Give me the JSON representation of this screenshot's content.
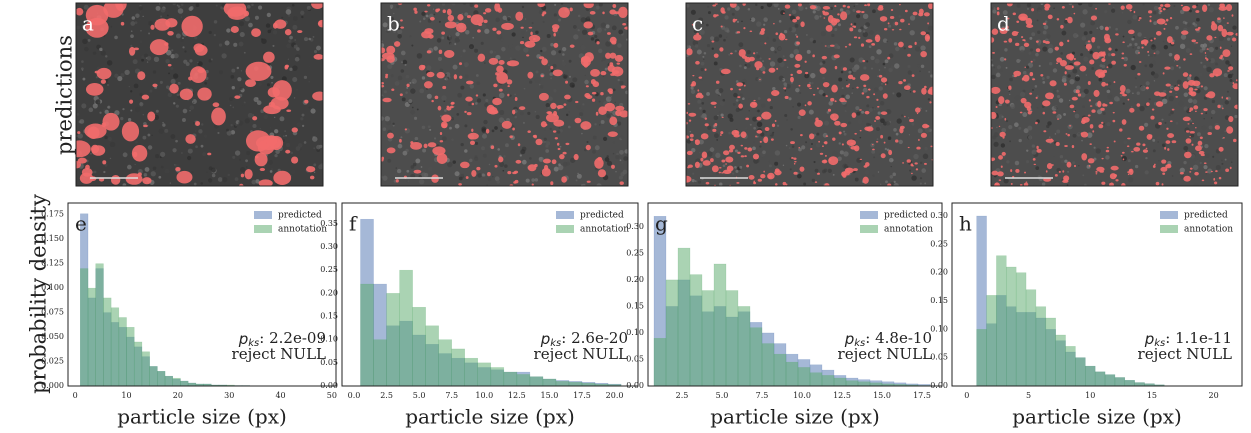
{
  "top_label": "predictions",
  "images": [
    {
      "label": "a"
    },
    {
      "label": "b"
    },
    {
      "label": "c"
    },
    {
      "label": "d"
    }
  ],
  "chart_data": [
    {
      "type": "histogram",
      "panel": "e",
      "xlabel": "particle size (px)",
      "ylabel": "probability density",
      "stat_symbol": "p",
      "stat_subscript": "ks",
      "stat_value": ": 2.2e-09",
      "decision": "reject NULL",
      "legend": "upper right",
      "xlim": [
        -1.4,
        50.8
      ],
      "xticks": [
        0,
        10,
        20,
        30,
        40,
        50
      ],
      "ylim": [
        0,
        0.187
      ],
      "yticks": [
        {
          "value": 0,
          "label": "0.000"
        },
        {
          "value": 0.025,
          "label": "0.025"
        },
        {
          "value": 0.05,
          "label": "0.050"
        },
        {
          "value": 0.075,
          "label": "0.075"
        },
        {
          "value": 0.1,
          "label": "0.100"
        },
        {
          "value": 0.125,
          "label": "0.125"
        },
        {
          "value": 0.15,
          "label": "0.150"
        },
        {
          "value": 0.175,
          "label": "0.175"
        }
      ],
      "bins": [
        1,
        2.5,
        4,
        5.5,
        7,
        8.5,
        10,
        11.5,
        13,
        14.5,
        16,
        17.5,
        19,
        20.5,
        22,
        23.5,
        25,
        26.5,
        28,
        29.5,
        31,
        32.5,
        34
      ],
      "series": [
        {
          "name": "predicted",
          "color": "#4c72b0",
          "values": [
            0.176,
            0.09,
            0.12,
            0.075,
            0.065,
            0.06,
            0.05,
            0.04,
            0.03,
            0.02,
            0.015,
            0.01,
            0.007,
            0.005,
            0.003,
            0.002,
            0.002,
            0.001,
            0.001,
            0.0005,
            0.0005,
            0.0005
          ]
        },
        {
          "name": "annotation",
          "color": "#55a868",
          "values": [
            0.12,
            0.1,
            0.125,
            0.09,
            0.08,
            0.07,
            0.06,
            0.045,
            0.035,
            0.02,
            0.015,
            0.01,
            0.008,
            0.005,
            0.003,
            0.002,
            0.002,
            0.001,
            0.001,
            0.001,
            0.0005,
            0.0005
          ]
        }
      ]
    },
    {
      "type": "histogram",
      "panel": "f",
      "xlabel": "particle size (px)",
      "stat_symbol": "p",
      "stat_subscript": "ks",
      "stat_value": ": 2.6e-20",
      "decision": "reject NULL",
      "legend": "upper right",
      "xlim": [
        -0.92,
        21.8
      ],
      "xticks": [
        {
          "value": 0,
          "label": "0.0"
        },
        2.5,
        {
          "value": 5,
          "label": "5.0"
        },
        7.5,
        {
          "value": 10,
          "label": "10.0"
        },
        12.5,
        {
          "value": 15,
          "label": "15.0"
        },
        17.5,
        {
          "value": 20,
          "label": "20.0"
        }
      ],
      "ylim": [
        0,
        0.395
      ],
      "yticks": [
        {
          "value": 0,
          "label": "0.00"
        },
        0.05,
        {
          "value": 0.1,
          "label": "0.10"
        },
        0.15,
        {
          "value": 0.2,
          "label": "0.20"
        },
        0.25,
        {
          "value": 0.3,
          "label": "0.30"
        },
        0.35
      ],
      "bins": [
        0.5,
        1.5,
        2.5,
        3.5,
        4.5,
        5.5,
        6.5,
        7.5,
        8.5,
        9.5,
        10.5,
        11.5,
        12.5,
        13.5,
        14.5,
        15.5,
        16.5,
        17.5,
        18.5,
        19.5,
        20.5
      ],
      "series": [
        {
          "name": "predicted",
          "color": "#4c72b0",
          "values": [
            0.36,
            0.22,
            0.13,
            0.14,
            0.11,
            0.09,
            0.07,
            0.06,
            0.05,
            0.04,
            0.035,
            0.03,
            0.03,
            0.02,
            0.015,
            0.012,
            0.01,
            0.008,
            0.006,
            0.004
          ]
        },
        {
          "name": "annotation",
          "color": "#55a868",
          "values": [
            0.22,
            0.1,
            0.2,
            0.25,
            0.17,
            0.13,
            0.1,
            0.08,
            0.06,
            0.05,
            0.04,
            0.03,
            0.025,
            0.02,
            0.015,
            0.01,
            0.008,
            0.006,
            0.004,
            0.003
          ]
        }
      ]
    },
    {
      "type": "histogram",
      "panel": "g",
      "xlabel": "particle size (px)",
      "stat_symbol": "p",
      "stat_subscript": "ks",
      "stat_value": ": 4.8e-10",
      "decision": "reject NULL",
      "legend": "upper right",
      "xlim": [
        0.375,
        18.75
      ],
      "xticks": [
        2.5,
        {
          "value": 5,
          "label": "5.0"
        },
        7.5,
        {
          "value": 10,
          "label": "10.0"
        },
        12.5,
        {
          "value": 15,
          "label": "15.0"
        },
        17.5
      ],
      "ylim": [
        0,
        0.345
      ],
      "yticks": [
        {
          "value": 0,
          "label": "0.00"
        },
        0.05,
        {
          "value": 0.1,
          "label": "0.10"
        },
        0.15,
        {
          "value": 0.2,
          "label": "0.20"
        },
        0.25,
        {
          "value": 0.3,
          "label": "0.30"
        }
      ],
      "bins": [
        0.75,
        1.5,
        2.25,
        3,
        3.75,
        4.5,
        5.25,
        6,
        6.75,
        7.5,
        8.25,
        9,
        9.75,
        10.5,
        11.25,
        12,
        12.75,
        13.5,
        14.25,
        15,
        15.75,
        16.5,
        17.25,
        18
      ],
      "series": [
        {
          "name": "predicted",
          "color": "#4c72b0",
          "values": [
            0.32,
            0.15,
            0.2,
            0.17,
            0.14,
            0.15,
            0.13,
            0.14,
            0.12,
            0.1,
            0.08,
            0.06,
            0.05,
            0.04,
            0.03,
            0.02,
            0.015,
            0.012,
            0.01,
            0.008,
            0.006,
            0.004,
            0.003
          ]
        },
        {
          "name": "annotation",
          "color": "#55a868",
          "values": [
            0.09,
            0.2,
            0.26,
            0.21,
            0.18,
            0.23,
            0.18,
            0.15,
            0.11,
            0.08,
            0.06,
            0.045,
            0.035,
            0.025,
            0.02,
            0.015,
            0.01,
            0.008,
            0.006,
            0.004,
            0.003,
            0.002,
            0.001
          ]
        }
      ]
    },
    {
      "type": "histogram",
      "panel": "h",
      "xlabel": "particle size (px)",
      "stat_symbol": "p",
      "stat_subscript": "ks",
      "stat_value": ": 1.1e-11",
      "decision": "reject NULL",
      "legend": "upper right",
      "xlim": [
        -1.2,
        22.3
      ],
      "xticks": [
        0,
        5,
        10,
        15,
        20
      ],
      "ylim": [
        0,
        0.323
      ],
      "yticks": [
        {
          "value": 0,
          "label": "0.00"
        },
        0.05,
        {
          "value": 0.1,
          "label": "0.10"
        },
        0.15,
        {
          "value": 0.2,
          "label": "0.20"
        },
        0.25,
        {
          "value": 0.3,
          "label": "0.30"
        }
      ],
      "bins": [
        0.8,
        1.6,
        2.4,
        3.2,
        4,
        4.8,
        5.6,
        6.4,
        7.2,
        8,
        8.8,
        9.6,
        10.4,
        11.2,
        12,
        12.8,
        13.6,
        14.4,
        15.2,
        16
      ],
      "series": [
        {
          "name": "predicted",
          "color": "#4c72b0",
          "values": [
            0.3,
            0.11,
            0.16,
            0.14,
            0.13,
            0.13,
            0.12,
            0.1,
            0.08,
            0.06,
            0.05,
            0.035,
            0.025,
            0.02,
            0.015,
            0.01,
            0.006,
            0.004,
            0.002
          ]
        },
        {
          "name": "annotation",
          "color": "#55a868",
          "values": [
            0.1,
            0.16,
            0.23,
            0.21,
            0.2,
            0.17,
            0.14,
            0.12,
            0.09,
            0.07,
            0.05,
            0.035,
            0.025,
            0.02,
            0.015,
            0.01,
            0.006,
            0.004,
            0.002
          ]
        }
      ]
    }
  ]
}
